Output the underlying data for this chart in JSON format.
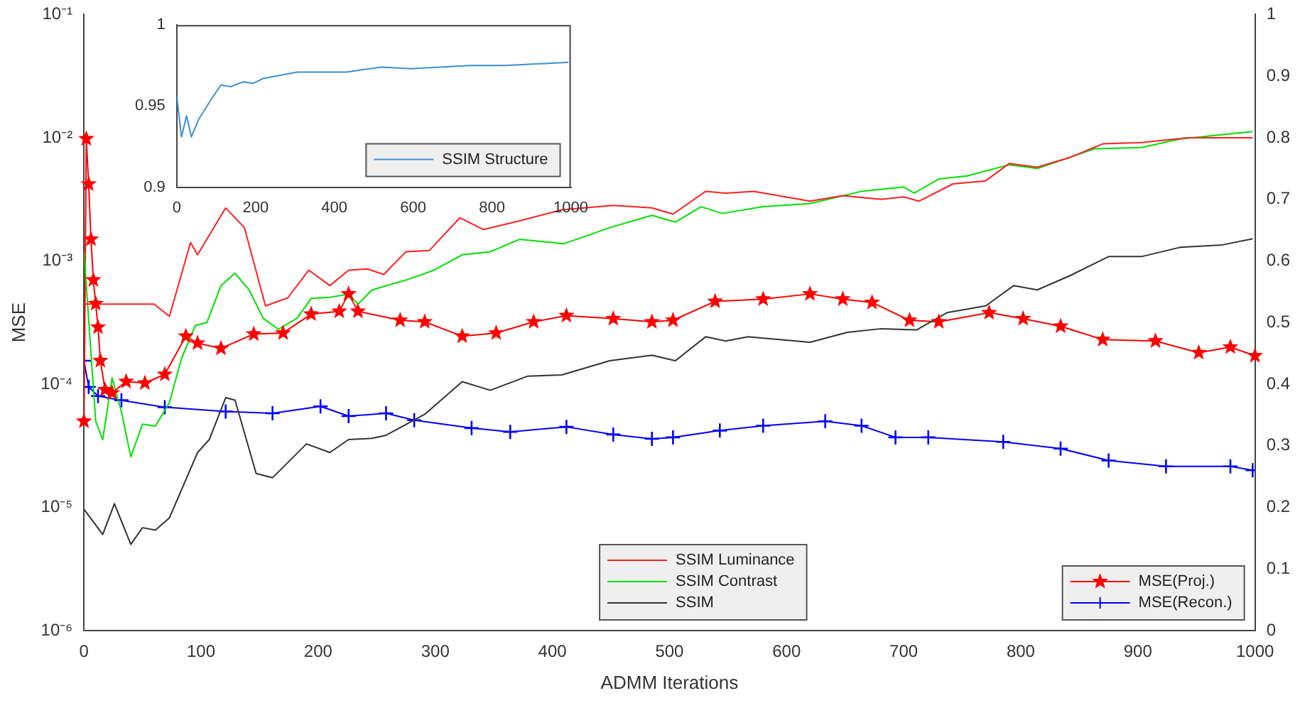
{
  "chart_data": [
    {
      "type": "line",
      "xlabel": "ADMM Iterations",
      "ylabel": "MSE",
      "log": "y",
      "legend": "bottom right",
      "xlim": [
        0,
        1000
      ],
      "xticks": [
        0,
        100,
        200,
        300,
        400,
        500,
        600,
        700,
        800,
        900,
        1000
      ],
      "ylim": [
        1e-06,
        0.1
      ],
      "yticks": [
        {
          "value": 1e-06,
          "label": "10⁻⁶"
        },
        {
          "value": 1e-05,
          "label": "10⁻⁵"
        },
        {
          "value": 0.0001,
          "label": "10⁻⁴"
        },
        {
          "value": 0.001,
          "label": "10⁻³"
        },
        {
          "value": 0.01,
          "label": "10⁻²"
        },
        {
          "value": 0.1,
          "label": "10⁻¹"
        }
      ],
      "y2lim": [
        0,
        1
      ],
      "y2ticks": [
        0,
        0.1,
        0.2,
        0.3,
        0.4,
        0.5,
        0.6,
        0.7,
        0.8,
        0.9,
        1
      ],
      "series": [
        {
          "name": "SSIM Luminance",
          "color": "#ff2020",
          "axis": "y2",
          "marker": "none",
          "x": [
            0,
            10,
            60,
            73,
            91,
            97,
            121,
            137,
            155,
            174,
            192,
            210,
            226,
            242,
            256,
            275,
            295,
            321,
            341,
            372,
            408,
            452,
            485,
            503,
            531,
            548,
            572,
            620,
            648,
            681,
            700,
            713,
            742,
            770,
            790,
            814,
            842,
            870,
            903,
            943,
            998
          ],
          "values": [
            0.53,
            0.53,
            0.53,
            0.51,
            0.63,
            0.61,
            0.686,
            0.654,
            0.527,
            0.54,
            0.585,
            0.56,
            0.585,
            0.587,
            0.578,
            0.615,
            0.617,
            0.67,
            0.651,
            0.665,
            0.683,
            0.69,
            0.686,
            0.676,
            0.713,
            0.71,
            0.713,
            0.697,
            0.706,
            0.7,
            0.704,
            0.697,
            0.725,
            0.73,
            0.758,
            0.752,
            0.768,
            0.79,
            0.792,
            0.8,
            0.8
          ]
        },
        {
          "name": "SSIM Contrast",
          "color": "#00e000",
          "axis": "y2",
          "marker": "none",
          "x": [
            0,
            10,
            16,
            24,
            32,
            40,
            50,
            61,
            73,
            83,
            95,
            105,
            117,
            129,
            141,
            153,
            166,
            182,
            194,
            210,
            226,
            234,
            246,
            275,
            299,
            323,
            347,
            372,
            410,
            449,
            485,
            505,
            527,
            545,
            580,
            620,
            664,
            700,
            709,
            730,
            754,
            790,
            814,
            863,
            903,
            936,
            998
          ],
          "values": [
            0.615,
            0.34,
            0.31,
            0.41,
            0.355,
            0.282,
            0.335,
            0.332,
            0.37,
            0.44,
            0.495,
            0.5,
            0.56,
            0.58,
            0.553,
            0.507,
            0.489,
            0.507,
            0.539,
            0.541,
            0.546,
            0.53,
            0.553,
            0.569,
            0.585,
            0.61,
            0.615,
            0.635,
            0.628,
            0.654,
            0.674,
            0.663,
            0.688,
            0.677,
            0.688,
            0.693,
            0.713,
            0.72,
            0.71,
            0.733,
            0.738,
            0.756,
            0.75,
            0.782,
            0.784,
            0.798,
            0.81
          ]
        },
        {
          "name": "SSIM",
          "color": "#333333",
          "axis": "y2",
          "marker": "none",
          "x": [
            0,
            16,
            26,
            40,
            50,
            61,
            73,
            97,
            107,
            121,
            129,
            147,
            161,
            190,
            210,
            226,
            246,
            258,
            291,
            323,
            347,
            379,
            408,
            449,
            485,
            505,
            531,
            548,
            567,
            620,
            652,
            681,
            711,
            737,
            770,
            794,
            814,
            842,
            875,
            903,
            936,
            972,
            998
          ],
          "values": [
            0.197,
            0.156,
            0.206,
            0.14,
            0.167,
            0.163,
            0.183,
            0.289,
            0.31,
            0.378,
            0.374,
            0.255,
            0.248,
            0.303,
            0.289,
            0.31,
            0.312,
            0.317,
            0.351,
            0.404,
            0.39,
            0.413,
            0.415,
            0.438,
            0.447,
            0.438,
            0.477,
            0.47,
            0.477,
            0.468,
            0.484,
            0.49,
            0.488,
            0.516,
            0.527,
            0.56,
            0.553,
            0.576,
            0.607,
            0.607,
            0.622,
            0.626,
            0.636
          ]
        },
        {
          "name": "MSE(Proj.)",
          "color": "#ff0000",
          "axis": "y",
          "marker": "star",
          "x": [
            0,
            2,
            4,
            6,
            8,
            10,
            12,
            14,
            18,
            24,
            36,
            52,
            69,
            87,
            97,
            117,
            145,
            170,
            194,
            218,
            226,
            234,
            270,
            291,
            323,
            352,
            384,
            412,
            452,
            485,
            503,
            539,
            580,
            620,
            648,
            673,
            705,
            730,
            773,
            802,
            834,
            870,
            915,
            952,
            979,
            1000
          ],
          "values": [
            5e-05,
            0.0098,
            0.0042,
            0.0015,
            0.0007,
            0.00045,
            0.00029,
            0.000155,
            9e-05,
            8.5e-05,
            0.000105,
            0.000102,
            0.00012,
            0.000245,
            0.000215,
            0.000195,
            0.000255,
            0.00026,
            0.00037,
            0.00039,
            0.00054,
            0.00039,
            0.00033,
            0.00032,
            0.000245,
            0.00026,
            0.00032,
            0.00036,
            0.00034,
            0.00032,
            0.00033,
            0.00047,
            0.00049,
            0.00054,
            0.00049,
            0.00046,
            0.00033,
            0.00032,
            0.00038,
            0.00034,
            0.000295,
            0.00023,
            0.000224,
            0.00018,
            0.0002,
            0.00017
          ]
        },
        {
          "name": "MSE(Recon.)",
          "color": "#0000ff",
          "axis": "y",
          "marker": "cross",
          "x": [
            0,
            4,
            12,
            32,
            69,
            121,
            161,
            202,
            226,
            258,
            282,
            331,
            364,
            412,
            452,
            485,
            503,
            543,
            580,
            633,
            664,
            693,
            721,
            785,
            834,
            875,
            924,
            979,
            998
          ],
          "values": [
            0.000155,
            9.5e-05,
            8e-05,
            7.4e-05,
            6.5e-05,
            6e-05,
            5.8e-05,
            6.6e-05,
            5.5e-05,
            5.8e-05,
            5.1e-05,
            4.4e-05,
            4.1e-05,
            4.5e-05,
            3.9e-05,
            3.6e-05,
            3.7e-05,
            4.2e-05,
            4.6e-05,
            5e-05,
            4.6e-05,
            3.7e-05,
            3.7e-05,
            3.4e-05,
            3e-05,
            2.4e-05,
            2.15e-05,
            2.15e-05,
            2e-05
          ]
        }
      ]
    },
    {
      "type": "line",
      "legend": "bottom right",
      "xlim": [
        0,
        1000
      ],
      "xticks": [
        0,
        200,
        400,
        600,
        800,
        1000
      ],
      "ylim": [
        0.9,
        1
      ],
      "yticks": [
        0.9,
        0.95,
        1
      ],
      "series": [
        {
          "name": "SSIM Structure",
          "color": "#3d8fd4",
          "marker": "none",
          "x": [
            0,
            12,
            25,
            37,
            56,
            87,
            112,
            137,
            169,
            194,
            219,
            306,
            431,
            519,
            594,
            744,
            831,
            994
          ],
          "values": [
            0.956,
            0.931,
            0.944,
            0.931,
            0.942,
            0.954,
            0.963,
            0.962,
            0.965,
            0.964,
            0.967,
            0.971,
            0.971,
            0.974,
            0.973,
            0.975,
            0.975,
            0.977
          ]
        }
      ]
    }
  ]
}
